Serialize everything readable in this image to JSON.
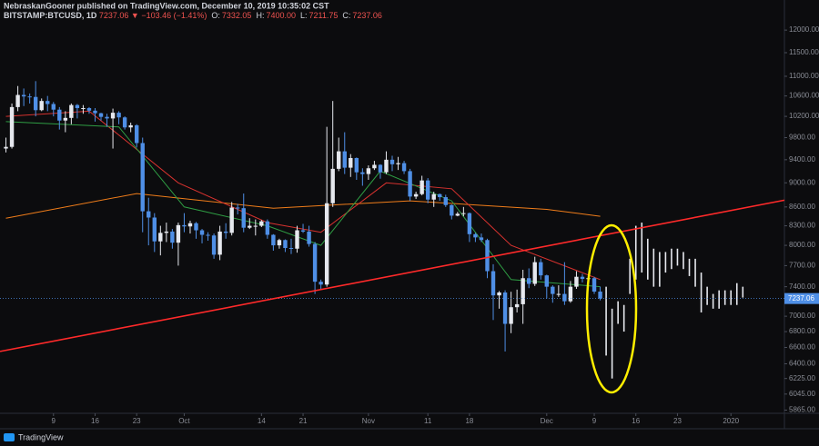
{
  "header": {
    "publisher": "NebraskanGooner published on TradingView.com, December 10, 2019 10:35:02 CST",
    "symbol": "BITSTAMP:BTCUSD, 1D",
    "last": "7237.06",
    "change": "▼ −103.46 (−1.41%)",
    "ohlc": [
      {
        "k": "O:",
        "v": "7332.05"
      },
      {
        "k": "H:",
        "v": "7400.00"
      },
      {
        "k": "L:",
        "v": "7211.75"
      },
      {
        "k": "C:",
        "v": "7237.06"
      }
    ]
  },
  "footer": "TradingView",
  "chart_data": {
    "type": "candlestick",
    "log_scale": true,
    "grid": false,
    "xlim": [
      "2019-08-31",
      "2020-01-10"
    ],
    "ylim": [
      5830,
      12700
    ],
    "yticks": [
      {
        "value": 12000,
        "label": "12000.00"
      },
      {
        "value": 11500,
        "label": "11500.00"
      },
      {
        "value": 11000,
        "label": "11000.00"
      },
      {
        "value": 10600,
        "label": "10600.00"
      },
      {
        "value": 10200,
        "label": "10200.00"
      },
      {
        "value": 9800,
        "label": "9800.00"
      },
      {
        "value": 9400,
        "label": "9400.00"
      },
      {
        "value": 9000,
        "label": "9000.00"
      },
      {
        "value": 8600,
        "label": "8600.00"
      },
      {
        "value": 8300,
        "label": "8300.00"
      },
      {
        "value": 8000,
        "label": "8000.00"
      },
      {
        "value": 7700,
        "label": "7700.00"
      },
      {
        "value": 7400,
        "label": "7400.00"
      },
      {
        "value": 7000,
        "label": "7000.00"
      },
      {
        "value": 6800,
        "label": "6800.00"
      },
      {
        "value": 6600,
        "label": "6600.00"
      },
      {
        "value": 6400,
        "label": "6400.00"
      },
      {
        "value": 6225,
        "label": "6225.00"
      },
      {
        "value": 6045,
        "label": "6045.00"
      },
      {
        "value": 5865,
        "label": "5865.00"
      }
    ],
    "xticks": [
      {
        "value": "2019-09-09",
        "label": "9"
      },
      {
        "value": "2019-09-16",
        "label": "16"
      },
      {
        "value": "2019-09-23",
        "label": "23"
      },
      {
        "value": "2019-10-01",
        "label": "Oct"
      },
      {
        "value": "2019-10-14",
        "label": "14"
      },
      {
        "value": "2019-10-21",
        "label": "21"
      },
      {
        "value": "2019-11-01",
        "label": "Nov"
      },
      {
        "value": "2019-11-11",
        "label": "11"
      },
      {
        "value": "2019-11-18",
        "label": "18"
      },
      {
        "value": "2019-12-01",
        "label": "Dec"
      },
      {
        "value": "2019-12-09",
        "label": "9"
      },
      {
        "value": "2019-12-16",
        "label": "16"
      },
      {
        "value": "2019-12-23",
        "label": "23"
      },
      {
        "value": "2020-01-01",
        "label": "2020"
      }
    ],
    "up_color": "#e6e8ee",
    "down_color": "#4f8fe6",
    "candles": {
      "x": [
        "2019-09-01",
        "2019-09-02",
        "2019-09-03",
        "2019-09-04",
        "2019-09-05",
        "2019-09-06",
        "2019-09-07",
        "2019-09-08",
        "2019-09-09",
        "2019-09-10",
        "2019-09-11",
        "2019-09-12",
        "2019-09-13",
        "2019-09-14",
        "2019-09-15",
        "2019-09-16",
        "2019-09-17",
        "2019-09-18",
        "2019-09-19",
        "2019-09-20",
        "2019-09-21",
        "2019-09-22",
        "2019-09-23",
        "2019-09-24",
        "2019-09-25",
        "2019-09-26",
        "2019-09-27",
        "2019-09-28",
        "2019-09-29",
        "2019-09-30",
        "2019-10-01",
        "2019-10-02",
        "2019-10-03",
        "2019-10-04",
        "2019-10-05",
        "2019-10-06",
        "2019-10-07",
        "2019-10-08",
        "2019-10-09",
        "2019-10-10",
        "2019-10-11",
        "2019-10-12",
        "2019-10-13",
        "2019-10-14",
        "2019-10-15",
        "2019-10-16",
        "2019-10-17",
        "2019-10-18",
        "2019-10-19",
        "2019-10-20",
        "2019-10-21",
        "2019-10-22",
        "2019-10-23",
        "2019-10-24",
        "2019-10-25",
        "2019-10-26",
        "2019-10-27",
        "2019-10-28",
        "2019-10-29",
        "2019-10-30",
        "2019-10-31",
        "2019-11-01",
        "2019-11-02",
        "2019-11-03",
        "2019-11-04",
        "2019-11-05",
        "2019-11-06",
        "2019-11-07",
        "2019-11-08",
        "2019-11-09",
        "2019-11-10",
        "2019-11-11",
        "2019-11-12",
        "2019-11-13",
        "2019-11-14",
        "2019-11-15",
        "2019-11-16",
        "2019-11-17",
        "2019-11-18",
        "2019-11-19",
        "2019-11-20",
        "2019-11-21",
        "2019-11-22",
        "2019-11-23",
        "2019-11-24",
        "2019-11-25",
        "2019-11-26",
        "2019-11-27",
        "2019-11-28",
        "2019-11-29",
        "2019-11-30",
        "2019-12-01",
        "2019-12-02",
        "2019-12-03",
        "2019-12-04",
        "2019-12-05",
        "2019-12-06",
        "2019-12-07",
        "2019-12-08",
        "2019-12-09",
        "2019-12-10"
      ],
      "open": [
        9600,
        9630,
        10380,
        10620,
        10590,
        10580,
        10320,
        10500,
        10440,
        10330,
        10120,
        10170,
        10420,
        10360,
        10360,
        10310,
        10260,
        10190,
        10160,
        10270,
        10180,
        9990,
        10030,
        9700,
        8530,
        8430,
        8060,
        8190,
        8210,
        8040,
        8310,
        8290,
        8340,
        8230,
        8160,
        8150,
        7860,
        8210,
        8190,
        8590,
        8580,
        8270,
        8300,
        8300,
        8370,
        8160,
        8000,
        8080,
        7960,
        7950,
        8230,
        8210,
        8020,
        7470,
        7430,
        8660,
        9240,
        9550,
        9260,
        9430,
        9180,
        9150,
        9250,
        9310,
        9180,
        9400,
        9320,
        9340,
        9200,
        8770,
        8810,
        9040,
        8720,
        8810,
        8760,
        8630,
        8460,
        8490,
        8500,
        8170,
        8120,
        8080,
        7620,
        7280,
        7320,
        6900,
        7120,
        7160,
        7520,
        7440,
        7750,
        7560,
        7400,
        7300,
        7300,
        7200,
        7400,
        7540,
        7510,
        7520,
        7332.05
      ],
      "high": [
        9800,
        10450,
        10800,
        10750,
        10650,
        10900,
        10550,
        10600,
        10480,
        10380,
        10300,
        10450,
        10440,
        10420,
        10380,
        10360,
        10270,
        10250,
        10350,
        10300,
        10200,
        10080,
        10050,
        9800,
        8750,
        8500,
        8300,
        8350,
        8250,
        8350,
        8500,
        8380,
        8360,
        8250,
        8200,
        8180,
        8300,
        8340,
        8680,
        8650,
        8820,
        8420,
        8400,
        8390,
        8400,
        8170,
        8100,
        8090,
        8100,
        8300,
        8330,
        8300,
        8050,
        7500,
        10000,
        10500,
        9800,
        9900,
        9500,
        9440,
        9250,
        9300,
        9380,
        9320,
        9550,
        9470,
        9450,
        9380,
        9240,
        8850,
        9120,
        9080,
        8850,
        8820,
        8800,
        8640,
        8520,
        8600,
        8510,
        8190,
        8180,
        8100,
        7720,
        7340,
        7350,
        7330,
        7360,
        7640,
        7660,
        7830,
        7800,
        7570,
        7420,
        7420,
        7750,
        7480,
        7620,
        7580,
        7540,
        7540,
        7400
      ],
      "low": [
        9530,
        9600,
        10300,
        10400,
        10450,
        10200,
        10300,
        10300,
        10200,
        9950,
        9900,
        10050,
        10160,
        10250,
        10250,
        10100,
        10120,
        10000,
        9600,
        10050,
        9950,
        9900,
        9620,
        8200,
        8000,
        7900,
        7850,
        8050,
        7950,
        7700,
        8200,
        8180,
        8100,
        8030,
        8070,
        7800,
        7780,
        8100,
        8150,
        8480,
        8200,
        8250,
        8150,
        8280,
        8100,
        7920,
        7950,
        7900,
        7870,
        7890,
        8190,
        7980,
        7300,
        7360,
        7400,
        8600,
        9200,
        9150,
        9100,
        9050,
        8950,
        9050,
        9220,
        9070,
        9150,
        9200,
        9220,
        9150,
        8700,
        8730,
        8790,
        8660,
        8600,
        8700,
        8600,
        8400,
        8450,
        8450,
        8050,
        8050,
        8050,
        7520,
        6950,
        7100,
        6550,
        6780,
        7050,
        6900,
        7380,
        7410,
        7500,
        7240,
        7180,
        7260,
        7150,
        7180,
        7370,
        7460,
        7480,
        7300,
        7211.75
      ],
      "close": [
        9630,
        10380,
        10620,
        10590,
        10580,
        10320,
        10500,
        10440,
        10330,
        10120,
        10170,
        10420,
        10360,
        10360,
        10310,
        10260,
        10190,
        10160,
        10270,
        10180,
        9990,
        10030,
        9700,
        8530,
        8430,
        8060,
        8190,
        8210,
        8040,
        8310,
        8290,
        8340,
        8230,
        8160,
        8150,
        7860,
        8210,
        8190,
        8590,
        8580,
        8270,
        8300,
        8300,
        8370,
        8160,
        8000,
        8080,
        7960,
        7950,
        8230,
        8210,
        8020,
        7470,
        7430,
        8660,
        9240,
        9550,
        9260,
        9430,
        9180,
        9150,
        9250,
        9310,
        9180,
        9400,
        9320,
        9340,
        9200,
        8770,
        8810,
        9040,
        8720,
        8810,
        8760,
        8630,
        8460,
        8490,
        8500,
        8170,
        8120,
        8080,
        7620,
        7280,
        7320,
        6900,
        7120,
        7160,
        7520,
        7440,
        7750,
        7560,
        7400,
        7300,
        7300,
        7200,
        7400,
        7540,
        7510,
        7520,
        7332.05,
        7237.06
      ]
    },
    "projection": {
      "color": "#e6e8ee",
      "x": [
        "2019-12-11",
        "2019-12-12",
        "2019-12-13",
        "2019-12-14",
        "2019-12-15",
        "2019-12-16",
        "2019-12-17",
        "2019-12-18",
        "2019-12-19",
        "2019-12-20",
        "2019-12-21",
        "2019-12-22",
        "2019-12-23",
        "2019-12-24",
        "2019-12-25",
        "2019-12-26",
        "2019-12-27",
        "2019-12-28",
        "2019-12-29",
        "2019-12-30",
        "2019-12-31",
        "2020-01-01",
        "2020-01-02",
        "2020-01-03"
      ],
      "high": [
        7400,
        7100,
        7200,
        7150,
        7800,
        8300,
        8350,
        8100,
        7950,
        7900,
        7900,
        7950,
        7950,
        7900,
        7800,
        7800,
        7600,
        7400,
        7300,
        7350,
        7350,
        7350,
        7450,
        7400
      ],
      "low": [
        6500,
        6225,
        6900,
        6800,
        7300,
        7500,
        7600,
        7500,
        7400,
        7400,
        7600,
        7650,
        7700,
        7650,
        7550,
        7400,
        7050,
        7150,
        7100,
        7100,
        7150,
        7150,
        7150,
        7250
      ]
    },
    "lines": [
      {
        "color": "#f07d1a",
        "x": [
          "2019-09-01",
          "2019-09-23",
          "2019-10-16",
          "2019-11-08",
          "2019-12-01",
          "2019-12-10"
        ],
        "values": [
          8420,
          8820,
          8580,
          8700,
          8560,
          8450
        ]
      },
      {
        "color": "#d8322f",
        "x": [
          "2019-09-01",
          "2019-09-15",
          "2019-09-30",
          "2019-10-15",
          "2019-10-24",
          "2019-11-04",
          "2019-11-15",
          "2019-11-25",
          "2019-12-10"
        ],
        "values": [
          10200,
          10300,
          9000,
          8350,
          8200,
          9000,
          8900,
          8000,
          7500
        ]
      },
      {
        "color": "#2f9e44",
        "x": [
          "2019-09-01",
          "2019-09-20",
          "2019-10-01",
          "2019-10-15",
          "2019-10-24",
          "2019-11-03",
          "2019-11-15",
          "2019-11-25",
          "2019-12-10"
        ],
        "values": [
          10100,
          10000,
          8600,
          8300,
          8000,
          9200,
          8700,
          7500,
          7400
        ]
      }
    ],
    "trendline": {
      "color": "#ff2a2a",
      "x": [
        "2019-08-31",
        "2020-01-10"
      ],
      "values": [
        6550,
        8710
      ]
    }
  }
}
